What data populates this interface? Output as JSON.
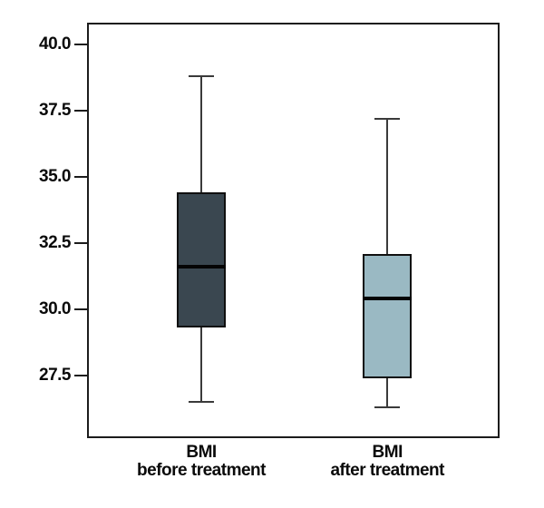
{
  "colors": {
    "background": "#ffffff",
    "frame": "#1c1c1c",
    "whisker": "#3a3a3a",
    "median": "#050505",
    "box_border": "#101010",
    "text": "#0a0a0a",
    "box1_fill": "#3a4750",
    "box2_fill": "#9ab9c3"
  },
  "chart_data": {
    "type": "boxplot",
    "title": "",
    "xlabel": "",
    "ylabel": "",
    "grid": false,
    "legend": false,
    "categories": [
      "BMI before treatment",
      "BMI after treatment"
    ],
    "y_ticks": [
      40.0,
      37.5,
      35.0,
      32.5,
      30.0,
      27.5
    ],
    "y_tick_decimals": 1,
    "ylim": [
      25.2,
      40.75
    ],
    "series": [
      {
        "name": "BMI before treatment",
        "label_lines": [
          "BMI",
          "before treatment"
        ],
        "whisker_min": 26.5,
        "q1": 29.3,
        "median": 31.6,
        "q3": 34.4,
        "whisker_max": 38.8,
        "fill": "#3a4750"
      },
      {
        "name": "BMI after treatment",
        "label_lines": [
          "BMI",
          "after treatment"
        ],
        "whisker_min": 26.3,
        "q1": 27.4,
        "median": 30.4,
        "q3": 32.1,
        "whisker_max": 37.2,
        "fill": "#9ab9c3"
      }
    ]
  }
}
